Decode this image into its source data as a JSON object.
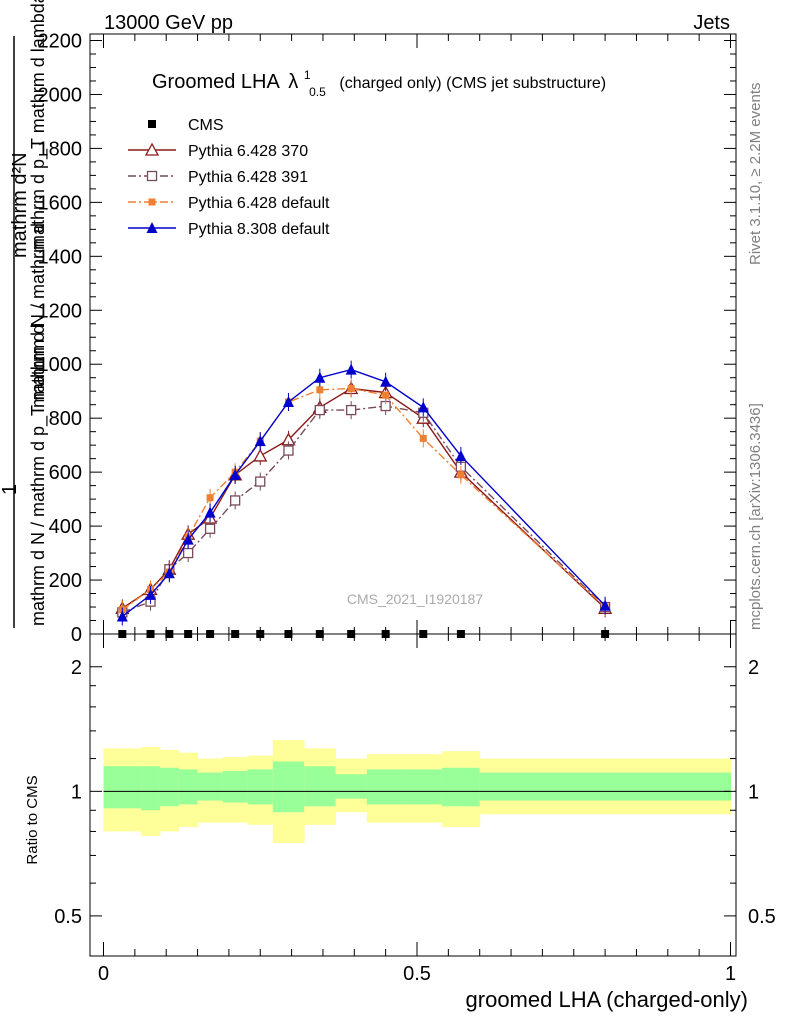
{
  "header": {
    "left": "13000 GeV pp",
    "right": "Jets"
  },
  "side_labels": {
    "rivet": "Rivet 3.1.10, ≥ 2.2M events",
    "mcplots": "mcplots.cern.ch [arXiv:1306.3436]"
  },
  "chart_data": [
    {
      "type": "line",
      "title": "Groomed LHA",
      "title_symbol": "λ",
      "title_sup": "1",
      "title_sub": "0.5",
      "title_suffix": "(charged only) (CMS jet substructure)",
      "analysis_label": "CMS_2021_I1920187",
      "ylabel_top": "mathrm d²N",
      "ylabel_top2": "mathrm d p_T mathrm d lambda",
      "ylabel_one": "1",
      "ylabel_bottom": "mathrm d N / mathrm d p_T mathrm d",
      "ylabel_bottom2": "mathrm d N / mathrm d",
      "xlim": [
        0,
        1
      ],
      "ylim": [
        0,
        2200
      ],
      "yticks": [
        0,
        200,
        400,
        600,
        800,
        1000,
        1200,
        1400,
        1600,
        1800,
        2000,
        2200
      ],
      "ytick_labels": [
        "0",
        "200",
        "400",
        "600",
        "800",
        "1000",
        "1200",
        "1400",
        "1600",
        "1800",
        "2000",
        "2200"
      ],
      "legend_position": "top-left",
      "series": [
        {
          "name": "CMS",
          "color": "#000000",
          "marker": "square-filled",
          "line": "none",
          "x": [
            0.03,
            0.075,
            0.105,
            0.135,
            0.17,
            0.21,
            0.25,
            0.295,
            0.345,
            0.395,
            0.45,
            0.51,
            0.57,
            0.8
          ],
          "y": [
            0,
            0,
            0,
            0,
            0,
            0,
            0,
            0,
            0,
            0,
            0,
            0,
            0,
            0
          ]
        },
        {
          "name": "Pythia 6.428 370",
          "color": "#8b1a1a",
          "marker": "triangle-open",
          "line": "solid",
          "x": [
            0.03,
            0.075,
            0.105,
            0.135,
            0.17,
            0.21,
            0.25,
            0.295,
            0.345,
            0.395,
            0.45,
            0.51,
            0.57,
            0.8
          ],
          "y": [
            95,
            165,
            240,
            370,
            430,
            590,
            660,
            720,
            840,
            910,
            895,
            800,
            600,
            95
          ]
        },
        {
          "name": "Pythia 6.428 391",
          "color": "#7a4a5a",
          "marker": "square-open",
          "line": "dashdot",
          "x": [
            0.03,
            0.075,
            0.105,
            0.135,
            0.17,
            0.21,
            0.25,
            0.295,
            0.345,
            0.395,
            0.45,
            0.51,
            0.57,
            0.8
          ],
          "y": [
            80,
            120,
            240,
            300,
            390,
            495,
            565,
            680,
            830,
            830,
            845,
            820,
            620,
            100
          ]
        },
        {
          "name": "Pythia 6.428 default",
          "color": "#f08030",
          "marker": "square-filled-small",
          "line": "dashdot",
          "x": [
            0.03,
            0.075,
            0.105,
            0.135,
            0.17,
            0.21,
            0.25,
            0.295,
            0.345,
            0.395,
            0.45,
            0.51,
            0.57,
            0.8
          ],
          "y": [
            90,
            165,
            230,
            360,
            505,
            600,
            715,
            860,
            905,
            910,
            885,
            725,
            590,
            100
          ]
        },
        {
          "name": "Pythia 8.308 default",
          "color": "#0000cc",
          "marker": "triangle-filled",
          "line": "solid",
          "x": [
            0.03,
            0.075,
            0.105,
            0.135,
            0.17,
            0.21,
            0.25,
            0.295,
            0.345,
            0.395,
            0.45,
            0.51,
            0.57,
            0.8
          ],
          "y": [
            65,
            145,
            225,
            350,
            450,
            590,
            715,
            860,
            950,
            980,
            935,
            840,
            660,
            105
          ]
        }
      ]
    },
    {
      "type": "area",
      "ylabel": "Ratio to CMS",
      "xlabel": "groomed LHA (charged-only)",
      "xlim": [
        0,
        1
      ],
      "ylim": [
        0.4,
        2.4
      ],
      "yscale": "log",
      "xticks": [
        0,
        0.5,
        1
      ],
      "xtick_labels": [
        "0",
        "0.5",
        "1"
      ],
      "yticks": [
        0.5,
        1,
        2
      ],
      "ytick_labels": [
        "0.5",
        "1",
        "2"
      ],
      "bin_edges": [
        0,
        0.06,
        0.09,
        0.12,
        0.15,
        0.19,
        0.23,
        0.27,
        0.32,
        0.37,
        0.42,
        0.48,
        0.54,
        0.6,
        1.0
      ],
      "band_outer_lo": [
        0.8,
        0.78,
        0.8,
        0.82,
        0.84,
        0.84,
        0.83,
        0.75,
        0.83,
        0.89,
        0.84,
        0.84,
        0.82,
        0.88
      ],
      "band_outer_hi": [
        1.27,
        1.28,
        1.26,
        1.24,
        1.2,
        1.21,
        1.22,
        1.33,
        1.27,
        1.2,
        1.23,
        1.23,
        1.25,
        1.2
      ],
      "band_inner_lo": [
        0.91,
        0.9,
        0.92,
        0.93,
        0.95,
        0.94,
        0.93,
        0.89,
        0.92,
        0.96,
        0.93,
        0.93,
        0.92,
        0.95
      ],
      "band_inner_hi": [
        1.15,
        1.15,
        1.14,
        1.13,
        1.11,
        1.12,
        1.13,
        1.18,
        1.15,
        1.1,
        1.13,
        1.13,
        1.14,
        1.11
      ],
      "reference_line": 1,
      "colors": {
        "outer": "#ffff99",
        "inner": "#99ff99",
        "line": "#000000"
      }
    }
  ]
}
